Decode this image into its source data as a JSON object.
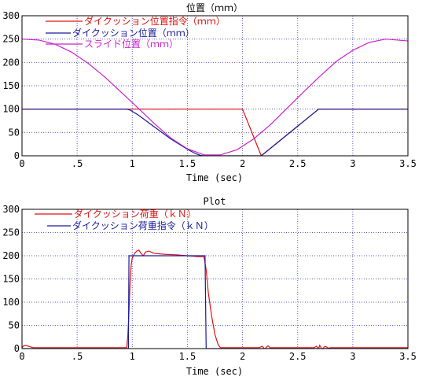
{
  "colors": {
    "background": "#ffffff",
    "grid": "#5c5cc8",
    "red": "#e01010",
    "blue": "#1a1a9a",
    "magenta": "#cc22cc"
  },
  "chart_data": [
    {
      "type": "line",
      "title": "位置（ｍｍ）",
      "xlabel": "Time (sec)",
      "ylabel": "",
      "xlim": [
        0,
        3.5
      ],
      "ylim": [
        0,
        300
      ],
      "x_ticks": [
        0,
        0.5,
        1,
        1.5,
        2,
        2.5,
        3,
        3.5
      ],
      "x_tick_labels": [
        "0",
        ".5",
        "1",
        "1.5",
        "2",
        "2.5",
        "3",
        "3.5"
      ],
      "y_ticks": [
        0,
        50,
        100,
        150,
        200,
        250,
        300
      ],
      "y_tick_labels": [
        "0",
        "50",
        "100",
        "150",
        "200",
        "250",
        "300"
      ],
      "grid": true,
      "legend_position": "top-left",
      "series": [
        {
          "name": "ダイクッション位置指令（ｍｍ）",
          "color": "#e01010",
          "x": [
            0,
            1.0,
            1.5,
            1.55,
            1.6,
            1.7,
            1.75,
            1.8,
            1.9,
            2.0,
            2.17,
            2.69,
            3.5
          ],
          "y": [
            100,
            100,
            100,
            100,
            100,
            100,
            100,
            100,
            100,
            100,
            0,
            100,
            100
          ]
        },
        {
          "name": "ダイクッション位置（ｍｍ）",
          "color": "#1a1a9a",
          "x": [
            0,
            0.95,
            0.98,
            1.05,
            1.2,
            1.35,
            1.5,
            1.58,
            1.62,
            1.65,
            1.8,
            2.0,
            2.17,
            2.69,
            3.5
          ],
          "y": [
            100,
            100,
            98,
            88,
            62,
            36,
            14,
            4,
            1,
            0,
            0,
            0,
            0,
            100,
            100
          ]
        },
        {
          "name": "スライド位置（ｍｍ）",
          "color": "#cc22cc",
          "x": [
            0,
            0.15,
            0.3,
            0.45,
            0.6,
            0.75,
            0.9,
            1.05,
            1.2,
            1.35,
            1.5,
            1.65,
            1.8,
            1.95,
            2.1,
            2.25,
            2.4,
            2.55,
            2.7,
            2.85,
            3.0,
            3.15,
            3.3,
            3.45,
            3.5
          ],
          "y": [
            250,
            248,
            239,
            222,
            198,
            169,
            136,
            103,
            69,
            38,
            15,
            2,
            2,
            13,
            36,
            66,
            101,
            136,
            170,
            202,
            226,
            243,
            250,
            247,
            246
          ]
        }
      ]
    },
    {
      "type": "line",
      "title": "Plot",
      "xlabel": "Time (sec)",
      "ylabel": "",
      "xlim": [
        0,
        3.5
      ],
      "ylim": [
        0,
        300
      ],
      "x_ticks": [
        0,
        0.5,
        1,
        1.5,
        2,
        2.5,
        3,
        3.5
      ],
      "x_tick_labels": [
        "0",
        ".5",
        "1",
        "1.5",
        "2",
        "2.5",
        "3",
        "3.5"
      ],
      "y_ticks": [
        0,
        50,
        100,
        150,
        200,
        250,
        300
      ],
      "y_tick_labels": [
        "0",
        "50",
        "100",
        "150",
        "200",
        "250",
        "300"
      ],
      "grid": true,
      "legend_position": "top-left",
      "series": [
        {
          "name": "ダイクッション荷重（ｋＮ）",
          "color": "#e01010",
          "x": [
            0,
            0.01,
            0.03,
            0.06,
            0.1,
            0.95,
            0.96,
            0.97,
            0.98,
            0.99,
            1.0,
            1.02,
            1.04,
            1.06,
            1.08,
            1.1,
            1.12,
            1.15,
            1.2,
            1.3,
            1.4,
            1.5,
            1.6,
            1.65,
            1.67,
            1.69,
            1.72,
            1.75,
            1.78,
            1.8,
            1.85,
            1.9,
            2.0,
            2.15,
            2.18,
            2.2,
            2.23,
            2.25,
            2.4,
            2.65,
            2.67,
            2.69,
            2.7,
            2.72,
            2.75,
            2.78,
            2.8,
            3.0,
            3.5
          ],
          "y": [
            2,
            5,
            7,
            5,
            2,
            2,
            30,
            80,
            140,
            180,
            195,
            205,
            210,
            212,
            205,
            200,
            208,
            210,
            205,
            203,
            202,
            200,
            198,
            198,
            170,
            120,
            70,
            30,
            8,
            2,
            2,
            2,
            2,
            2,
            5,
            -1,
            6,
            2,
            2,
            2,
            5,
            0,
            7,
            -1,
            5,
            1,
            2,
            2,
            2
          ]
        },
        {
          "name": "ダイクッション荷重指令（ｋＮ）",
          "color": "#1a1a9a",
          "x": [
            0,
            0.965,
            0.97,
            1.0,
            1.3,
            1.6,
            1.66,
            1.67,
            2.0,
            3.5
          ],
          "y": [
            0,
            0,
            200,
            200,
            200,
            200,
            200,
            0,
            0,
            0
          ]
        }
      ]
    }
  ]
}
